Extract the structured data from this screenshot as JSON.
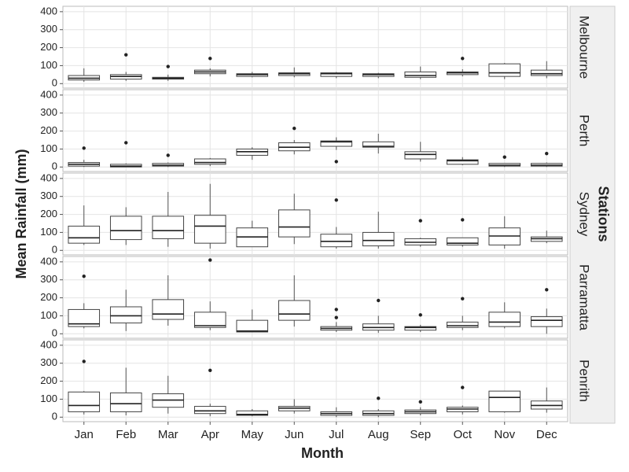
{
  "chart_data": {
    "type": "box",
    "xlabel": "Month",
    "ylabel": "Mean Rainfall (mm)",
    "facet_title": "Stations",
    "categories": [
      "Jan",
      "Feb",
      "Mar",
      "Apr",
      "May",
      "Jun",
      "Jul",
      "Aug",
      "Sep",
      "Oct",
      "Nov",
      "Dec"
    ],
    "ylim": [
      -25,
      430
    ],
    "yticks": [
      0,
      100,
      200,
      300,
      400
    ],
    "grid": true,
    "color": "#ffffff",
    "series": [
      {
        "name": "Melbourne",
        "values": [
          {
            "low": 10,
            "q1": 20,
            "median": 30,
            "q3": 45,
            "high": 85,
            "outliers": []
          },
          {
            "low": 15,
            "q1": 25,
            "median": 40,
            "q3": 50,
            "high": 65,
            "outliers": [
              160
            ]
          },
          {
            "low": 15,
            "q1": 25,
            "median": 30,
            "q3": 35,
            "high": 50,
            "outliers": [
              95
            ]
          },
          {
            "low": 40,
            "q1": 55,
            "median": 65,
            "q3": 75,
            "high": 85,
            "outliers": [
              140
            ]
          },
          {
            "low": 35,
            "q1": 40,
            "median": 50,
            "q3": 55,
            "high": 65,
            "outliers": []
          },
          {
            "low": 35,
            "q1": 45,
            "median": 55,
            "q3": 60,
            "high": 90,
            "outliers": []
          },
          {
            "low": 30,
            "q1": 40,
            "median": 55,
            "q3": 60,
            "high": 65,
            "outliers": []
          },
          {
            "low": 30,
            "q1": 40,
            "median": 50,
            "q3": 55,
            "high": 60,
            "outliers": []
          },
          {
            "low": 25,
            "q1": 35,
            "median": 45,
            "q3": 65,
            "high": 95,
            "outliers": []
          },
          {
            "low": 40,
            "q1": 50,
            "median": 60,
            "q3": 65,
            "high": 80,
            "outliers": [
              140
            ]
          },
          {
            "low": 25,
            "q1": 40,
            "median": 60,
            "q3": 110,
            "high": 115,
            "outliers": []
          },
          {
            "low": 30,
            "q1": 45,
            "median": 55,
            "q3": 75,
            "high": 125,
            "outliers": []
          }
        ]
      },
      {
        "name": "Perth",
        "values": [
          {
            "low": 0,
            "q1": 5,
            "median": 15,
            "q3": 25,
            "high": 40,
            "outliers": [
              105
            ]
          },
          {
            "low": 0,
            "q1": 0,
            "median": 5,
            "q3": 15,
            "high": 20,
            "outliers": [
              135
            ]
          },
          {
            "low": 0,
            "q1": 5,
            "median": 10,
            "q3": 20,
            "high": 25,
            "outliers": [
              65
            ]
          },
          {
            "low": 5,
            "q1": 15,
            "median": 25,
            "q3": 45,
            "high": 50,
            "outliers": []
          },
          {
            "low": 40,
            "q1": 65,
            "median": 85,
            "q3": 100,
            "high": 110,
            "outliers": []
          },
          {
            "low": 70,
            "q1": 90,
            "median": 110,
            "q3": 135,
            "high": 150,
            "outliers": [
              215
            ]
          },
          {
            "low": 95,
            "q1": 115,
            "median": 140,
            "q3": 145,
            "high": 165,
            "outliers": [
              30
            ]
          },
          {
            "low": 75,
            "q1": 110,
            "median": 115,
            "q3": 140,
            "high": 185,
            "outliers": []
          },
          {
            "low": 30,
            "q1": 45,
            "median": 70,
            "q3": 85,
            "high": 140,
            "outliers": []
          },
          {
            "low": 10,
            "q1": 15,
            "median": 35,
            "q3": 40,
            "high": 55,
            "outliers": []
          },
          {
            "low": 0,
            "q1": 5,
            "median": 10,
            "q3": 20,
            "high": 20,
            "outliers": [
              55
            ]
          },
          {
            "low": 0,
            "q1": 5,
            "median": 10,
            "q3": 20,
            "high": 25,
            "outliers": [
              75
            ]
          }
        ]
      },
      {
        "name": "Sydney",
        "values": [
          {
            "low": 30,
            "q1": 40,
            "median": 70,
            "q3": 135,
            "high": 250,
            "outliers": []
          },
          {
            "low": 30,
            "q1": 60,
            "median": 110,
            "q3": 190,
            "high": 240,
            "outliers": []
          },
          {
            "low": 20,
            "q1": 65,
            "median": 110,
            "q3": 190,
            "high": 325,
            "outliers": []
          },
          {
            "low": 10,
            "q1": 40,
            "median": 135,
            "q3": 195,
            "high": 370,
            "outliers": []
          },
          {
            "low": 20,
            "q1": 20,
            "median": 75,
            "q3": 125,
            "high": 165,
            "outliers": []
          },
          {
            "low": 35,
            "q1": 75,
            "median": 130,
            "q3": 225,
            "high": 315,
            "outliers": []
          },
          {
            "low": 10,
            "q1": 20,
            "median": 50,
            "q3": 90,
            "high": 130,
            "outliers": [
              280
            ]
          },
          {
            "low": 10,
            "q1": 25,
            "median": 55,
            "q3": 100,
            "high": 215,
            "outliers": []
          },
          {
            "low": 20,
            "q1": 30,
            "median": 45,
            "q3": 65,
            "high": 70,
            "outliers": [
              165
            ]
          },
          {
            "low": 20,
            "q1": 30,
            "median": 40,
            "q3": 70,
            "high": 70,
            "outliers": [
              170
            ]
          },
          {
            "low": 10,
            "q1": 30,
            "median": 80,
            "q3": 125,
            "high": 190,
            "outliers": []
          },
          {
            "low": 40,
            "q1": 50,
            "median": 65,
            "q3": 75,
            "high": 110,
            "outliers": []
          }
        ]
      },
      {
        "name": "Parramatta",
        "values": [
          {
            "low": 30,
            "q1": 40,
            "median": 55,
            "q3": 135,
            "high": 170,
            "outliers": [
              320
            ]
          },
          {
            "low": 15,
            "q1": 60,
            "median": 100,
            "q3": 150,
            "high": 245,
            "outliers": []
          },
          {
            "low": 45,
            "q1": 80,
            "median": 110,
            "q3": 190,
            "high": 325,
            "outliers": []
          },
          {
            "low": 20,
            "q1": 35,
            "median": 45,
            "q3": 120,
            "high": 180,
            "outliers": [
              410
            ]
          },
          {
            "low": 10,
            "q1": 10,
            "median": 15,
            "q3": 75,
            "high": 135,
            "outliers": []
          },
          {
            "low": 40,
            "q1": 75,
            "median": 110,
            "q3": 185,
            "high": 325,
            "outliers": []
          },
          {
            "low": 10,
            "q1": 20,
            "median": 30,
            "q3": 40,
            "high": 65,
            "outliers": [
              90,
              135
            ]
          },
          {
            "low": 5,
            "q1": 20,
            "median": 35,
            "q3": 55,
            "high": 100,
            "outliers": [
              185
            ]
          },
          {
            "low": 10,
            "q1": 20,
            "median": 35,
            "q3": 40,
            "high": 50,
            "outliers": [
              105
            ]
          },
          {
            "low": 20,
            "q1": 35,
            "median": 45,
            "q3": 65,
            "high": 100,
            "outliers": [
              195
            ]
          },
          {
            "low": 30,
            "q1": 40,
            "median": 65,
            "q3": 120,
            "high": 175,
            "outliers": []
          },
          {
            "low": 0,
            "q1": 40,
            "median": 75,
            "q3": 95,
            "high": 140,
            "outliers": [
              245
            ]
          }
        ]
      },
      {
        "name": "Penrith",
        "values": [
          {
            "low": 15,
            "q1": 30,
            "median": 65,
            "q3": 140,
            "high": 145,
            "outliers": [
              310
            ]
          },
          {
            "low": 10,
            "q1": 30,
            "median": 75,
            "q3": 135,
            "high": 275,
            "outliers": []
          },
          {
            "low": 20,
            "q1": 55,
            "median": 95,
            "q3": 130,
            "high": 230,
            "outliers": []
          },
          {
            "low": 5,
            "q1": 20,
            "median": 35,
            "q3": 60,
            "high": 75,
            "outliers": [
              260
            ]
          },
          {
            "low": 5,
            "q1": 10,
            "median": 15,
            "q3": 35,
            "high": 45,
            "outliers": []
          },
          {
            "low": 20,
            "q1": 35,
            "median": 50,
            "q3": 60,
            "high": 100,
            "outliers": []
          },
          {
            "low": 0,
            "q1": 10,
            "median": 20,
            "q3": 30,
            "high": 55,
            "outliers": []
          },
          {
            "low": 0,
            "q1": 10,
            "median": 20,
            "q3": 35,
            "high": 45,
            "outliers": [
              105
            ]
          },
          {
            "low": 10,
            "q1": 20,
            "median": 30,
            "q3": 40,
            "high": 55,
            "outliers": [
              85
            ]
          },
          {
            "low": 15,
            "q1": 30,
            "median": 45,
            "q3": 55,
            "high": 65,
            "outliers": [
              165
            ]
          },
          {
            "low": 25,
            "q1": 30,
            "median": 110,
            "q3": 145,
            "high": 145,
            "outliers": []
          },
          {
            "low": 25,
            "q1": 45,
            "median": 65,
            "q3": 90,
            "high": 165,
            "outliers": []
          }
        ]
      }
    ]
  }
}
